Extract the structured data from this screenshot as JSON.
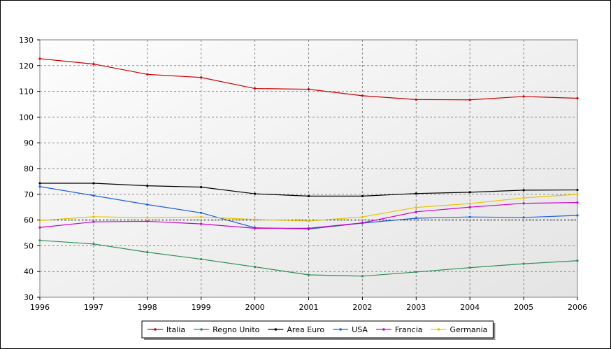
{
  "chart_data": {
    "type": "line",
    "title": "",
    "xlabel": "",
    "ylabel": "",
    "x": [
      1996,
      1997,
      1998,
      1999,
      2000,
      2001,
      2002,
      2003,
      2004,
      2005,
      2006
    ],
    "xlim": [
      1996,
      2006
    ],
    "ylim": [
      30,
      130
    ],
    "yticks": [
      30,
      40,
      50,
      60,
      70,
      80,
      90,
      100,
      110,
      120,
      130
    ],
    "grid": true,
    "legend_position": "bottom",
    "reference_line": {
      "y": 60,
      "style": "dotted",
      "color": "#000000"
    },
    "series": [
      {
        "name": "Italia",
        "color": "#cc0000",
        "values": [
          122.7,
          120.6,
          116.6,
          115.4,
          111.1,
          110.8,
          108.3,
          106.8,
          106.7,
          108.0,
          107.3
        ]
      },
      {
        "name": "Regno Unito",
        "color": "#2e8b57",
        "values": [
          52.1,
          50.7,
          47.5,
          44.8,
          41.8,
          38.7,
          38.2,
          39.8,
          41.5,
          43.0,
          44.2
        ]
      },
      {
        "name": "Area Euro",
        "color": "#000000",
        "values": [
          74.3,
          74.3,
          73.3,
          72.8,
          70.2,
          69.3,
          69.3,
          70.3,
          70.8,
          71.6,
          71.7
        ]
      },
      {
        "name": "USA",
        "color": "#1e5fdc",
        "values": [
          73.0,
          69.5,
          66.0,
          62.8,
          57.0,
          56.5,
          58.8,
          60.7,
          61.2,
          61.0,
          61.8
        ]
      },
      {
        "name": "Francia",
        "color": "#cc00cc",
        "values": [
          57.1,
          59.3,
          59.5,
          58.5,
          56.8,
          56.8,
          58.9,
          63.2,
          65.0,
          66.5,
          66.8
        ]
      },
      {
        "name": "Germania",
        "color": "#e6c300",
        "values": [
          59.8,
          61.3,
          60.9,
          61.2,
          60.2,
          59.6,
          61.2,
          64.9,
          66.4,
          68.6,
          70.0
        ]
      }
    ]
  }
}
